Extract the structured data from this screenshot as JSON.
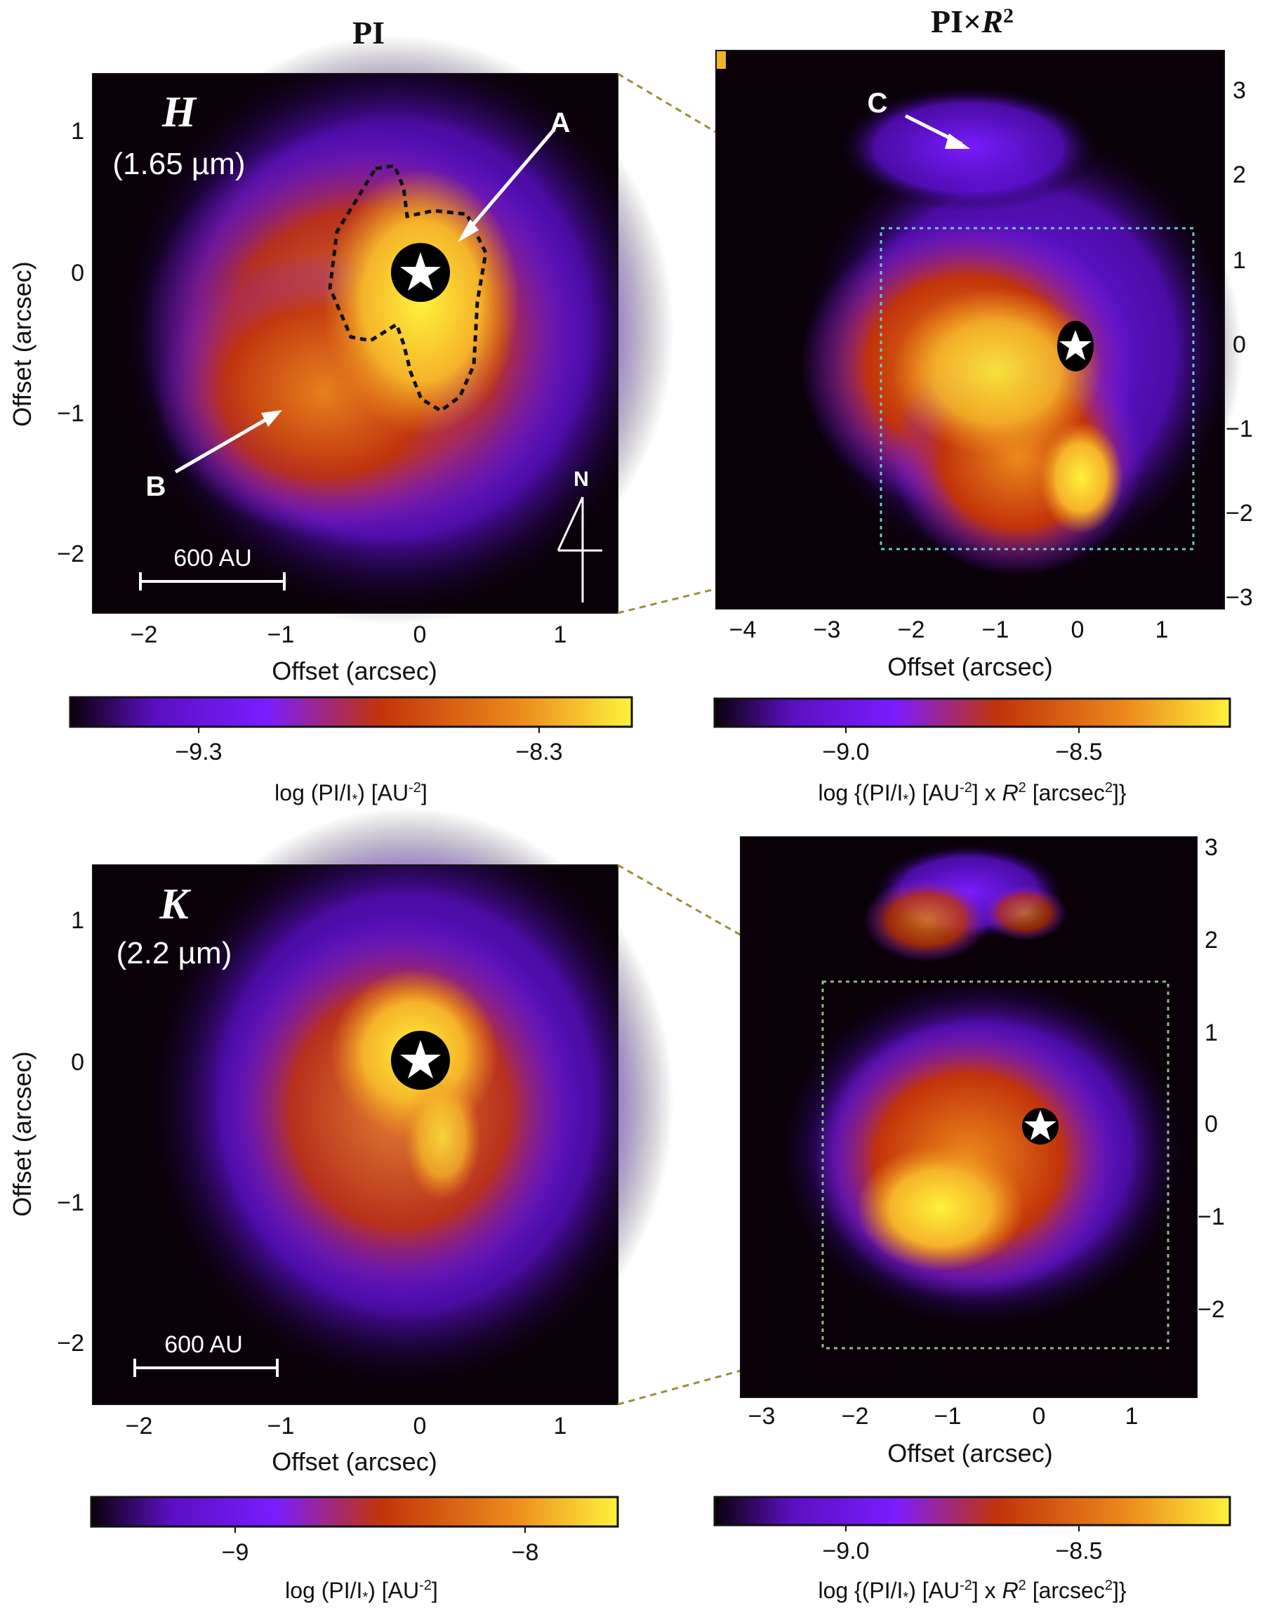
{
  "columns": {
    "left_title": "PI",
    "right_title_main": "PI×",
    "right_title_var": "R",
    "right_title_sup": "2"
  },
  "panels": {
    "top_left": {
      "band": "H",
      "wavelength": "(1.65 µm)",
      "scale_bar": "600 AU",
      "north": "N",
      "marker_a": "A",
      "marker_b": "B",
      "x_ticks": [
        "−2",
        "−1",
        "0",
        "1"
      ],
      "y_ticks": [
        "1",
        "0",
        "−1",
        "−2"
      ],
      "xlabel": "Offset (arcsec)",
      "ylabel": "Offset (arcsec)"
    },
    "top_right": {
      "marker_c": "C",
      "x_ticks": [
        "−4",
        "−3",
        "−2",
        "−1",
        "0",
        "1"
      ],
      "y_ticks": [
        "3",
        "2",
        "1",
        "0",
        "−1",
        "−2",
        "−3"
      ],
      "xlabel": "Offset (arcsec)"
    },
    "bottom_left": {
      "band": "K",
      "wavelength": "(2.2 µm)",
      "scale_bar": "600 AU",
      "x_ticks": [
        "−2",
        "−1",
        "0",
        "1"
      ],
      "y_ticks": [
        "1",
        "0",
        "−1",
        "−2"
      ],
      "xlabel": "Offset (arcsec)",
      "ylabel": "Offset (arcsec)"
    },
    "bottom_right": {
      "x_ticks": [
        "−3",
        "−2",
        "−1",
        "0",
        "1"
      ],
      "y_ticks": [
        "3",
        "2",
        "1",
        "0",
        "−1",
        "−2"
      ],
      "xlabel": "Offset (arcsec)"
    }
  },
  "colorbars": {
    "top_left": {
      "ticks": [
        "−9.3",
        "−8.3"
      ],
      "label_pre": "log (PI/I",
      "label_star": "*",
      "label_mid": ") [AU",
      "label_sup": "-2",
      "label_end": "]"
    },
    "top_right": {
      "ticks": [
        "−9.0",
        "−8.5"
      ],
      "label_pre": "log {(PI/I",
      "label_star": "*",
      "label_mid": ") [AU",
      "label_sup": "-2",
      "label_x": "] x ",
      "label_var": "R",
      "label_sup2": "2",
      "label_mid2": " [arcsec",
      "label_sup3": "2",
      "label_end": "]}"
    },
    "bottom_left": {
      "ticks": [
        "−9",
        "−8"
      ],
      "label_pre": "log (PI/I",
      "label_star": "*",
      "label_mid": ") [AU",
      "label_sup": "-2",
      "label_end": "]"
    },
    "bottom_right": {
      "ticks": [
        "−9.0",
        "−8.5"
      ],
      "label_pre": "log {(PI/I",
      "label_star": "*",
      "label_mid": ") [AU",
      "label_sup": "-2",
      "label_x": "] x ",
      "label_var": "R",
      "label_sup2": "2",
      "label_mid2": " [arcsec",
      "label_sup3": "2",
      "label_end": "]}"
    }
  },
  "colors": {
    "cmap_dark": "#0a0008",
    "cmap_purple": "#7a1cff",
    "cmap_red": "#c2330a",
    "cmap_orange": "#ec8a1c",
    "cmap_yellow": "#fff23c",
    "dash_olive": "#9a8f3a",
    "dash_cyan": "#6fc7c7"
  }
}
